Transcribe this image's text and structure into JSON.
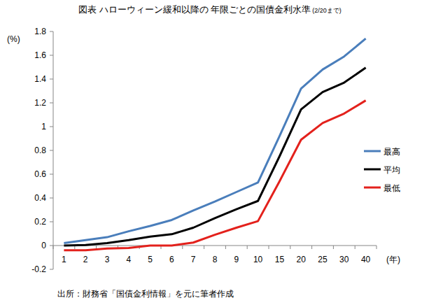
{
  "chart_data": {
    "type": "line",
    "title": "図表 ハローウィーン緩和以降の 年限ごとの国債金利水準",
    "subtitle": "(2/20まで)",
    "y_label": "(%)",
    "x_label": "(年)",
    "source": "出所：財務省「国債金利情報」を元に筆者作成",
    "categories": [
      "1",
      "2",
      "3",
      "4",
      "5",
      "6",
      "7",
      "8",
      "9",
      "10",
      "15",
      "20",
      "25",
      "30",
      "40"
    ],
    "series": [
      {
        "name": "最高",
        "color": "#4a7ebb",
        "values": [
          0.02,
          0.045,
          0.07,
          0.12,
          0.165,
          0.215,
          0.295,
          0.37,
          0.45,
          0.53,
          0.92,
          1.32,
          1.48,
          1.59,
          1.74
        ]
      },
      {
        "name": "平均",
        "color": "#000000",
        "values": [
          0.0,
          0.005,
          0.02,
          0.045,
          0.075,
          0.095,
          0.15,
          0.23,
          0.305,
          0.375,
          0.75,
          1.145,
          1.29,
          1.37,
          1.495
        ]
      },
      {
        "name": "最低",
        "color": "#e3211c",
        "values": [
          -0.04,
          -0.04,
          -0.025,
          -0.02,
          0.0,
          0.0,
          0.025,
          0.09,
          0.15,
          0.205,
          0.54,
          0.89,
          1.03,
          1.11,
          1.22
        ]
      }
    ],
    "ylim": [
      -0.2,
      1.8
    ],
    "yticks": [
      -0.2,
      0,
      0.2,
      0.4,
      0.6,
      0.8,
      1,
      1.2,
      1.4,
      1.6,
      1.8
    ],
    "grid": false,
    "legend": "right"
  }
}
